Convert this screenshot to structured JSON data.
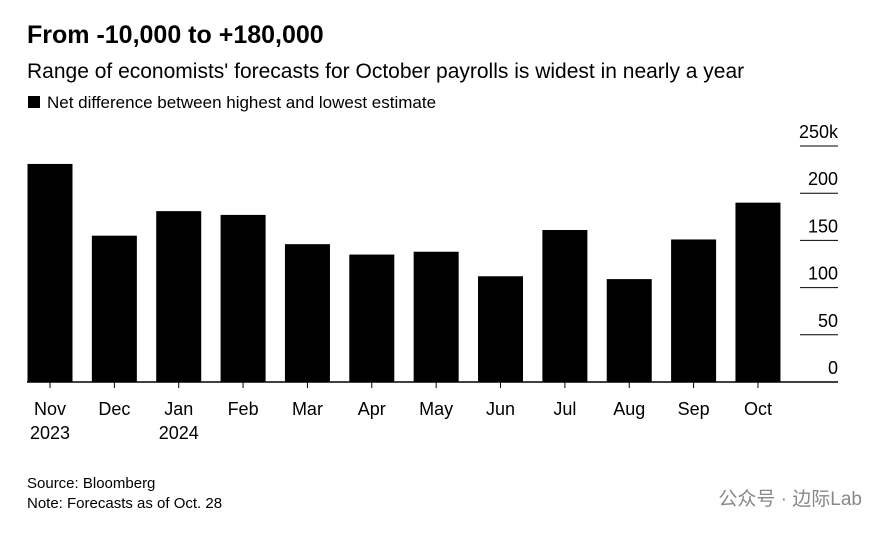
{
  "chart_data": {
    "type": "bar",
    "title": "From -10,000 to +180,000",
    "subtitle": "Range of economists' forecasts for October payrolls is widest in nearly a year",
    "series": [
      {
        "name": "Net difference between highest and lowest estimate",
        "color": "#000000",
        "values": [
          231,
          155,
          181,
          177,
          146,
          135,
          138,
          112,
          161,
          109,
          151,
          190
        ]
      }
    ],
    "categories": [
      "Nov 2023",
      "Dec",
      "Jan 2024",
      "Feb",
      "Mar",
      "Apr",
      "May",
      "Jun",
      "Jul",
      "Aug",
      "Sep",
      "Oct"
    ],
    "ylim": [
      0,
      250
    ],
    "yticks": [
      0,
      50,
      100,
      150,
      200,
      {
        "value": 250,
        "label": "250k"
      }
    ],
    "grid": true,
    "source": "Source: Bloomberg",
    "note": "Note: Forecasts as of Oct. 28",
    "watermark": "公众号 · 边际Lab"
  }
}
